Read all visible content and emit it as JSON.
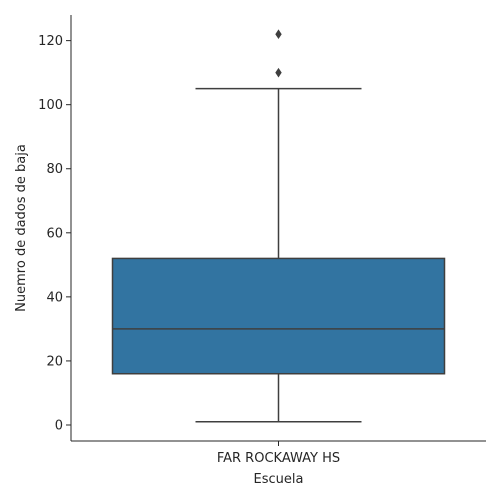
{
  "chart_data": {
    "type": "box",
    "xlabel": "Escuela",
    "ylabel": "Nuemro de dados de baja",
    "categories": [
      "FAR ROCKAWAY HS"
    ],
    "boxes": [
      {
        "category": "FAR ROCKAWAY HS",
        "whisker_low": 1,
        "q1": 16,
        "median": 30,
        "q3": 52,
        "whisker_high": 105,
        "outliers": [
          110,
          122
        ]
      }
    ],
    "ylim": [
      -5,
      128
    ],
    "yticks": [
      0,
      20,
      40,
      60,
      80,
      100,
      120
    ],
    "grid": false,
    "colors": {
      "box": "#3274a1",
      "line": "#3f3f3f",
      "axis": "#262626"
    }
  }
}
